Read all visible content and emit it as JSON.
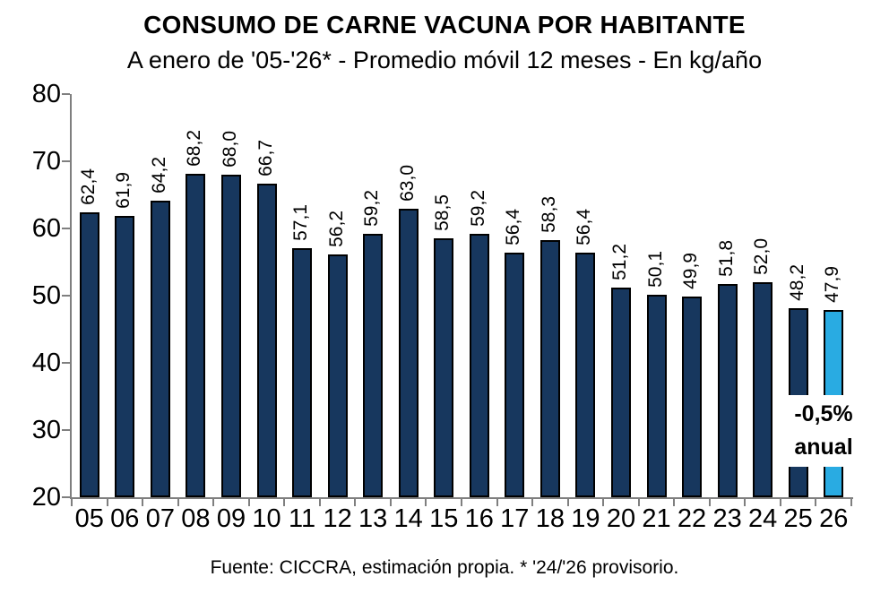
{
  "header": {
    "title": "CONSUMO DE CARNE VACUNA POR HABITANTE",
    "subtitle": "A enero de '05-'26* - Promedio móvil 12 meses - En kg/año"
  },
  "annotation": {
    "line1": "-0,5%",
    "line2": "anual"
  },
  "footer": {
    "source": "Fuente: CICCRA, estimación propia. * '24/'26 provisorio."
  },
  "chart_data": {
    "type": "bar",
    "title": "CONSUMO DE CARNE VACUNA POR HABITANTE",
    "subtitle": "A enero de '05-'26* - Promedio móvil 12 meses - En kg/año",
    "xlabel": "",
    "ylabel": "kg/año",
    "categories": [
      "05",
      "06",
      "07",
      "08",
      "09",
      "10",
      "11",
      "12",
      "13",
      "14",
      "15",
      "16",
      "17",
      "18",
      "19",
      "20",
      "21",
      "22",
      "23",
      "24",
      "25",
      "26"
    ],
    "values": [
      62.4,
      61.9,
      64.2,
      68.2,
      68.0,
      66.7,
      57.1,
      56.2,
      59.2,
      63.0,
      58.5,
      59.2,
      56.4,
      58.3,
      56.4,
      51.2,
      50.1,
      49.9,
      51.8,
      52.0,
      48.2,
      47.9
    ],
    "value_labels": [
      "62,4",
      "61,9",
      "64,2",
      "68,2",
      "68,0",
      "66,7",
      "57,1",
      "56,2",
      "59,2",
      "63,0",
      "58,5",
      "59,2",
      "56,4",
      "58,3",
      "56,4",
      "51,2",
      "50,1",
      "49,9",
      "51,8",
      "52,0",
      "48,2",
      "47,9"
    ],
    "ylim": [
      20,
      80
    ],
    "yticks": [
      20,
      30,
      40,
      50,
      60,
      70,
      80
    ],
    "grid": false,
    "legend": null,
    "bar_color": "#17375E",
    "highlight_color": "#29ABE2",
    "highlight_index": 21,
    "annotation": "-0,5% anual",
    "source": "Fuente: CICCRA, estimación propia. * '24/'26 provisorio."
  }
}
